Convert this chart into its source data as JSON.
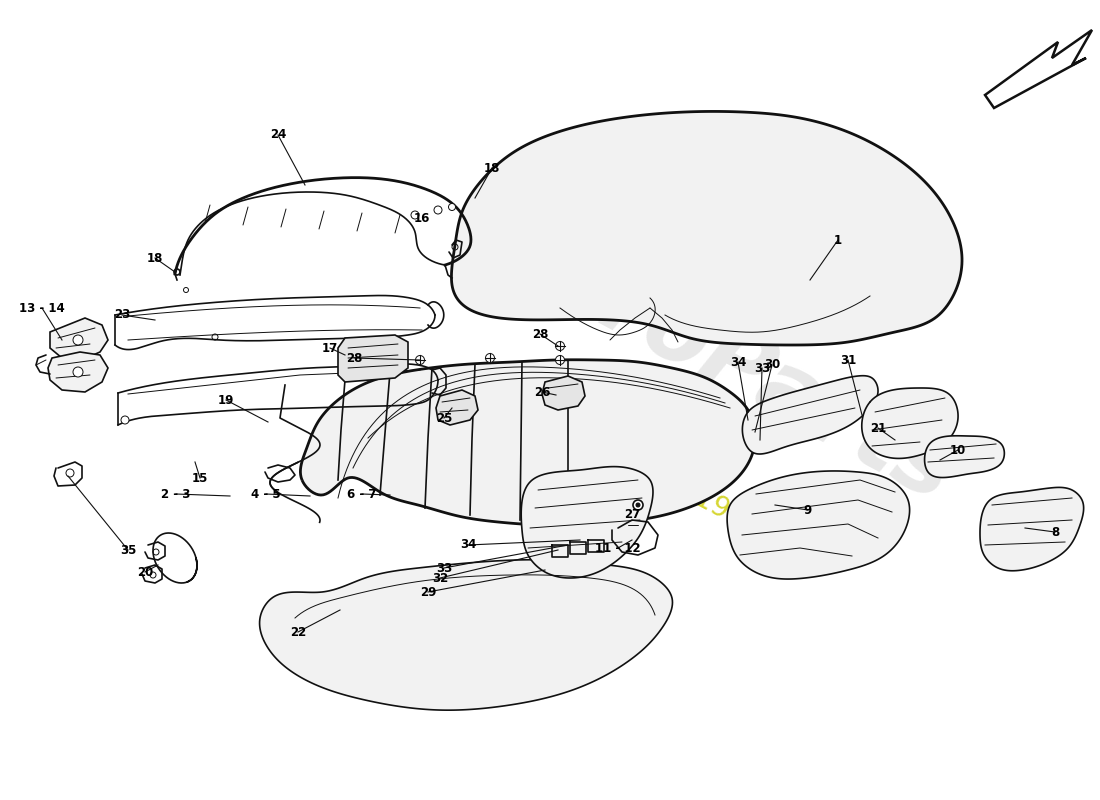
{
  "bg": "#ffffff",
  "lc": "#111111",
  "lw": 1.2,
  "lw_thick": 2.0,
  "lw_thin": 0.7,
  "fill_light": "#f2f2f2",
  "fill_mid": "#e5e5e5",
  "wm_gray": "#cccccc",
  "wm_yellow": "#cccc00",
  "figsize": [
    11.0,
    8.0
  ],
  "dpi": 100
}
